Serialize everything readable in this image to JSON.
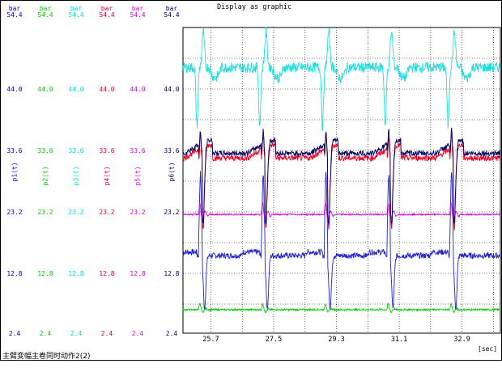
{
  "title": "Display as graphic",
  "caption": "主臂变幅主卷同时动作2(2)",
  "x_unit": "[sec]",
  "x_ticks": [
    "25.7",
    "27.5",
    "29.3",
    "31.1",
    "32.9"
  ],
  "axes": [
    {
      "id": "p1",
      "unit": "bar",
      "label": "p1(t)",
      "color": "#0000cc",
      "ticks": [
        "54.4",
        "44.0",
        "33.6",
        "23.2",
        "12.8",
        "2.4"
      ]
    },
    {
      "id": "p2",
      "unit": "bar",
      "label": "p2(t)",
      "color": "#00cc00",
      "ticks": [
        "54.4",
        "44.0",
        "33.6",
        "23.2",
        "12.8",
        "2.4"
      ]
    },
    {
      "id": "p3",
      "unit": "bar",
      "label": "p3(t)",
      "color": "#00dddd",
      "ticks": [
        "54.4",
        "44.0",
        "33.6",
        "23.2",
        "12.8",
        "2.4"
      ]
    },
    {
      "id": "p4",
      "unit": "bar",
      "label": "p4(t)",
      "color": "#dd0033",
      "ticks": [
        "54.4",
        "44.0",
        "33.6",
        "23.2",
        "12.8",
        "2.4"
      ]
    },
    {
      "id": "p5",
      "unit": "bar",
      "label": "p5(t)",
      "color": "#dd00dd",
      "ticks": [
        "54.4",
        "44.0",
        "33.6",
        "23.2",
        "12.8",
        "2.4"
      ]
    },
    {
      "id": "p6",
      "unit": "bar",
      "label": "p6(t)",
      "color": "#000066",
      "ticks": [
        "54.4",
        "44.0",
        "33.6",
        "23.2",
        "12.8",
        "2.4"
      ]
    }
  ],
  "chart_data": {
    "type": "line",
    "title": "Display as graphic",
    "xlabel": "[sec]",
    "ylabel": "bar",
    "ylim": [
      2.4,
      54.4
    ],
    "xlim": [
      24.9,
      34.0
    ],
    "grid": true,
    "period": 1.8,
    "pulse_times": [
      25.4,
      27.2,
      29.0,
      30.8,
      32.6
    ],
    "series": [
      {
        "name": "p1(t)",
        "color": "#2222cc",
        "baseline": 15.6
      },
      {
        "name": "p2(t)",
        "color": "#00cc00",
        "baseline": 6.4
      },
      {
        "name": "p3(t)",
        "color": "#22dddd",
        "baseline": 47.6
      },
      {
        "name": "p4(t)",
        "color": "#ee0022",
        "baseline": 32.2
      },
      {
        "name": "p5(t)",
        "color": "#dd00dd",
        "baseline": 22.6
      },
      {
        "name": "p6(t)",
        "color": "#000066",
        "baseline": 33.0
      }
    ]
  }
}
